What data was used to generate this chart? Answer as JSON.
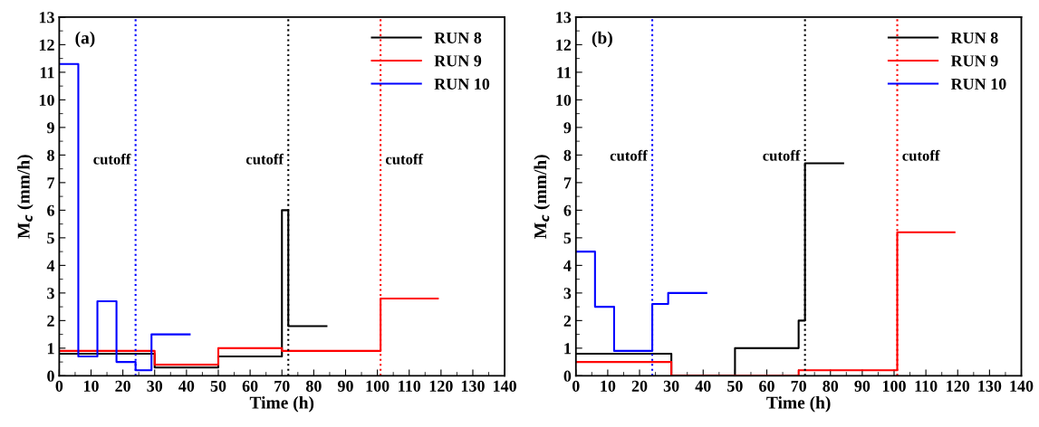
{
  "chart_data": [
    {
      "type": "step",
      "xlabel": "Time (h)",
      "ylabel": "M$_{c}$ (mm/h)",
      "annotations": [
        "(a)"
      ],
      "xlim": [
        0,
        140
      ],
      "xticks": [
        0,
        10,
        20,
        30,
        40,
        50,
        60,
        70,
        80,
        90,
        100,
        110,
        120,
        130,
        140
      ],
      "ylim": [
        0,
        13
      ],
      "yticks": [
        0,
        1,
        2,
        3,
        4,
        5,
        6,
        7,
        8,
        9,
        10,
        11,
        12,
        13
      ],
      "legend": "top right",
      "grid": false,
      "series": [
        {
          "name": "RUN 8",
          "color": "#000000",
          "x": [
            0,
            30,
            50,
            70,
            72,
            84
          ],
          "values": [
            0.8,
            0.3,
            0.7,
            6.0,
            1.8,
            1.8
          ]
        },
        {
          "name": "RUN 9",
          "color": "#ff0000",
          "x": [
            0,
            30,
            50,
            70,
            101,
            119
          ],
          "values": [
            0.9,
            0.4,
            1.0,
            0.9,
            2.8,
            2.8
          ]
        },
        {
          "name": "RUN 10",
          "color": "#0000ff",
          "x": [
            0,
            6,
            12,
            18,
            24,
            29,
            41
          ],
          "values": [
            11.3,
            0.7,
            2.7,
            0.5,
            0.2,
            1.5,
            1.5
          ]
        }
      ],
      "ref_lines": [
        {
          "axis": "x",
          "value": 24,
          "label": "cutoff",
          "color": "#0000ff",
          "line_style": "dotted"
        },
        {
          "axis": "x",
          "value": 72,
          "label": "cutoff",
          "color": "#000000",
          "line_style": "dotted"
        },
        {
          "axis": "x",
          "value": 101,
          "label": "cutoff",
          "color": "#ff0000",
          "line_style": "dotted"
        }
      ]
    },
    {
      "type": "step",
      "xlabel": "Time (h)",
      "ylabel": "M$_{c}$ (mm/h)",
      "annotations": [
        "(b)"
      ],
      "xlim": [
        0,
        140
      ],
      "xticks": [
        0,
        10,
        20,
        30,
        40,
        50,
        60,
        70,
        80,
        90,
        100,
        110,
        120,
        130,
        140
      ],
      "ylim": [
        0,
        13
      ],
      "yticks": [
        0,
        1,
        2,
        3,
        4,
        5,
        6,
        7,
        8,
        9,
        10,
        11,
        12,
        13
      ],
      "legend": "top right",
      "grid": false,
      "series": [
        {
          "name": "RUN 8",
          "color": "#000000",
          "x": [
            0,
            30,
            50,
            70,
            72,
            84
          ],
          "values": [
            0.8,
            0,
            1.0,
            2.0,
            7.7,
            7.7
          ]
        },
        {
          "name": "RUN 9",
          "color": "#ff0000",
          "x": [
            0,
            30,
            70,
            101,
            119
          ],
          "values": [
            0.5,
            0,
            0.2,
            5.2,
            5.2
          ]
        },
        {
          "name": "RUN 10",
          "color": "#0000ff",
          "x": [
            0,
            6,
            12,
            24,
            29,
            41
          ],
          "values": [
            4.5,
            2.5,
            0.9,
            2.6,
            3.0,
            3.0
          ]
        }
      ],
      "ref_lines": [
        {
          "axis": "x",
          "value": 24,
          "label": "cutoff",
          "color": "#0000ff",
          "line_style": "dotted"
        },
        {
          "axis": "x",
          "value": 72,
          "label": "cutoff",
          "color": "#000000",
          "line_style": "dotted"
        },
        {
          "axis": "x",
          "value": 101,
          "label": "cutoff",
          "color": "#ff0000",
          "line_style": "dotted"
        }
      ]
    }
  ]
}
